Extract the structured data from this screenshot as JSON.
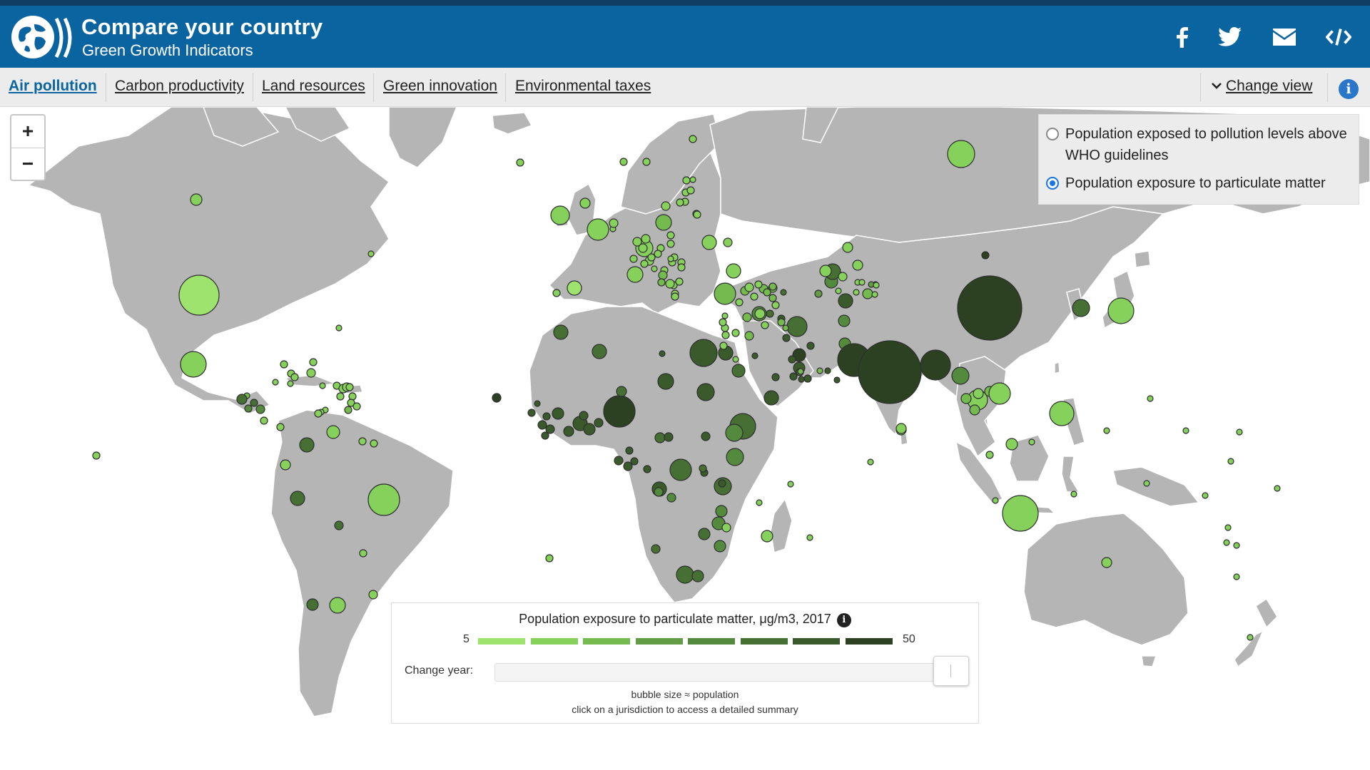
{
  "header": {
    "title": "Compare your country",
    "subtitle": "Green Growth Indicators",
    "share_icons": [
      "facebook-icon",
      "twitter-icon",
      "email-icon",
      "embed-code-icon"
    ]
  },
  "nav": {
    "tabs": [
      {
        "label": "Air pollution",
        "active": true
      },
      {
        "label": "Carbon productivity",
        "active": false
      },
      {
        "label": "Land resources",
        "active": false
      },
      {
        "label": "Green innovation",
        "active": false
      },
      {
        "label": "Environmental taxes",
        "active": false
      }
    ],
    "change_view": "Change view"
  },
  "map": {
    "zoom_in": "+",
    "zoom_out": "−"
  },
  "indicator_panel": {
    "options": [
      {
        "label": "Population exposed to pollution levels above WHO guidelines",
        "selected": false
      },
      {
        "label": "Population exposure to particulate matter",
        "selected": true
      }
    ]
  },
  "legend": {
    "title": "Population exposure to particulate matter, μg/m3, 2017",
    "min": "5",
    "max": "50",
    "colors": [
      "#9ee36d",
      "#86d15c",
      "#74ba4f",
      "#629c45",
      "#548a3d",
      "#466f34",
      "#3a5a2c",
      "#2c4122"
    ],
    "change_year_label": "Change year:",
    "note1": "bubble size ≈ population",
    "note2": "click on a jurisdiction to access a detailed summary"
  },
  "colors": {
    "header_bg": "#0a64a0",
    "land": "#b5b5b5",
    "accent": "#0a64a0"
  }
}
